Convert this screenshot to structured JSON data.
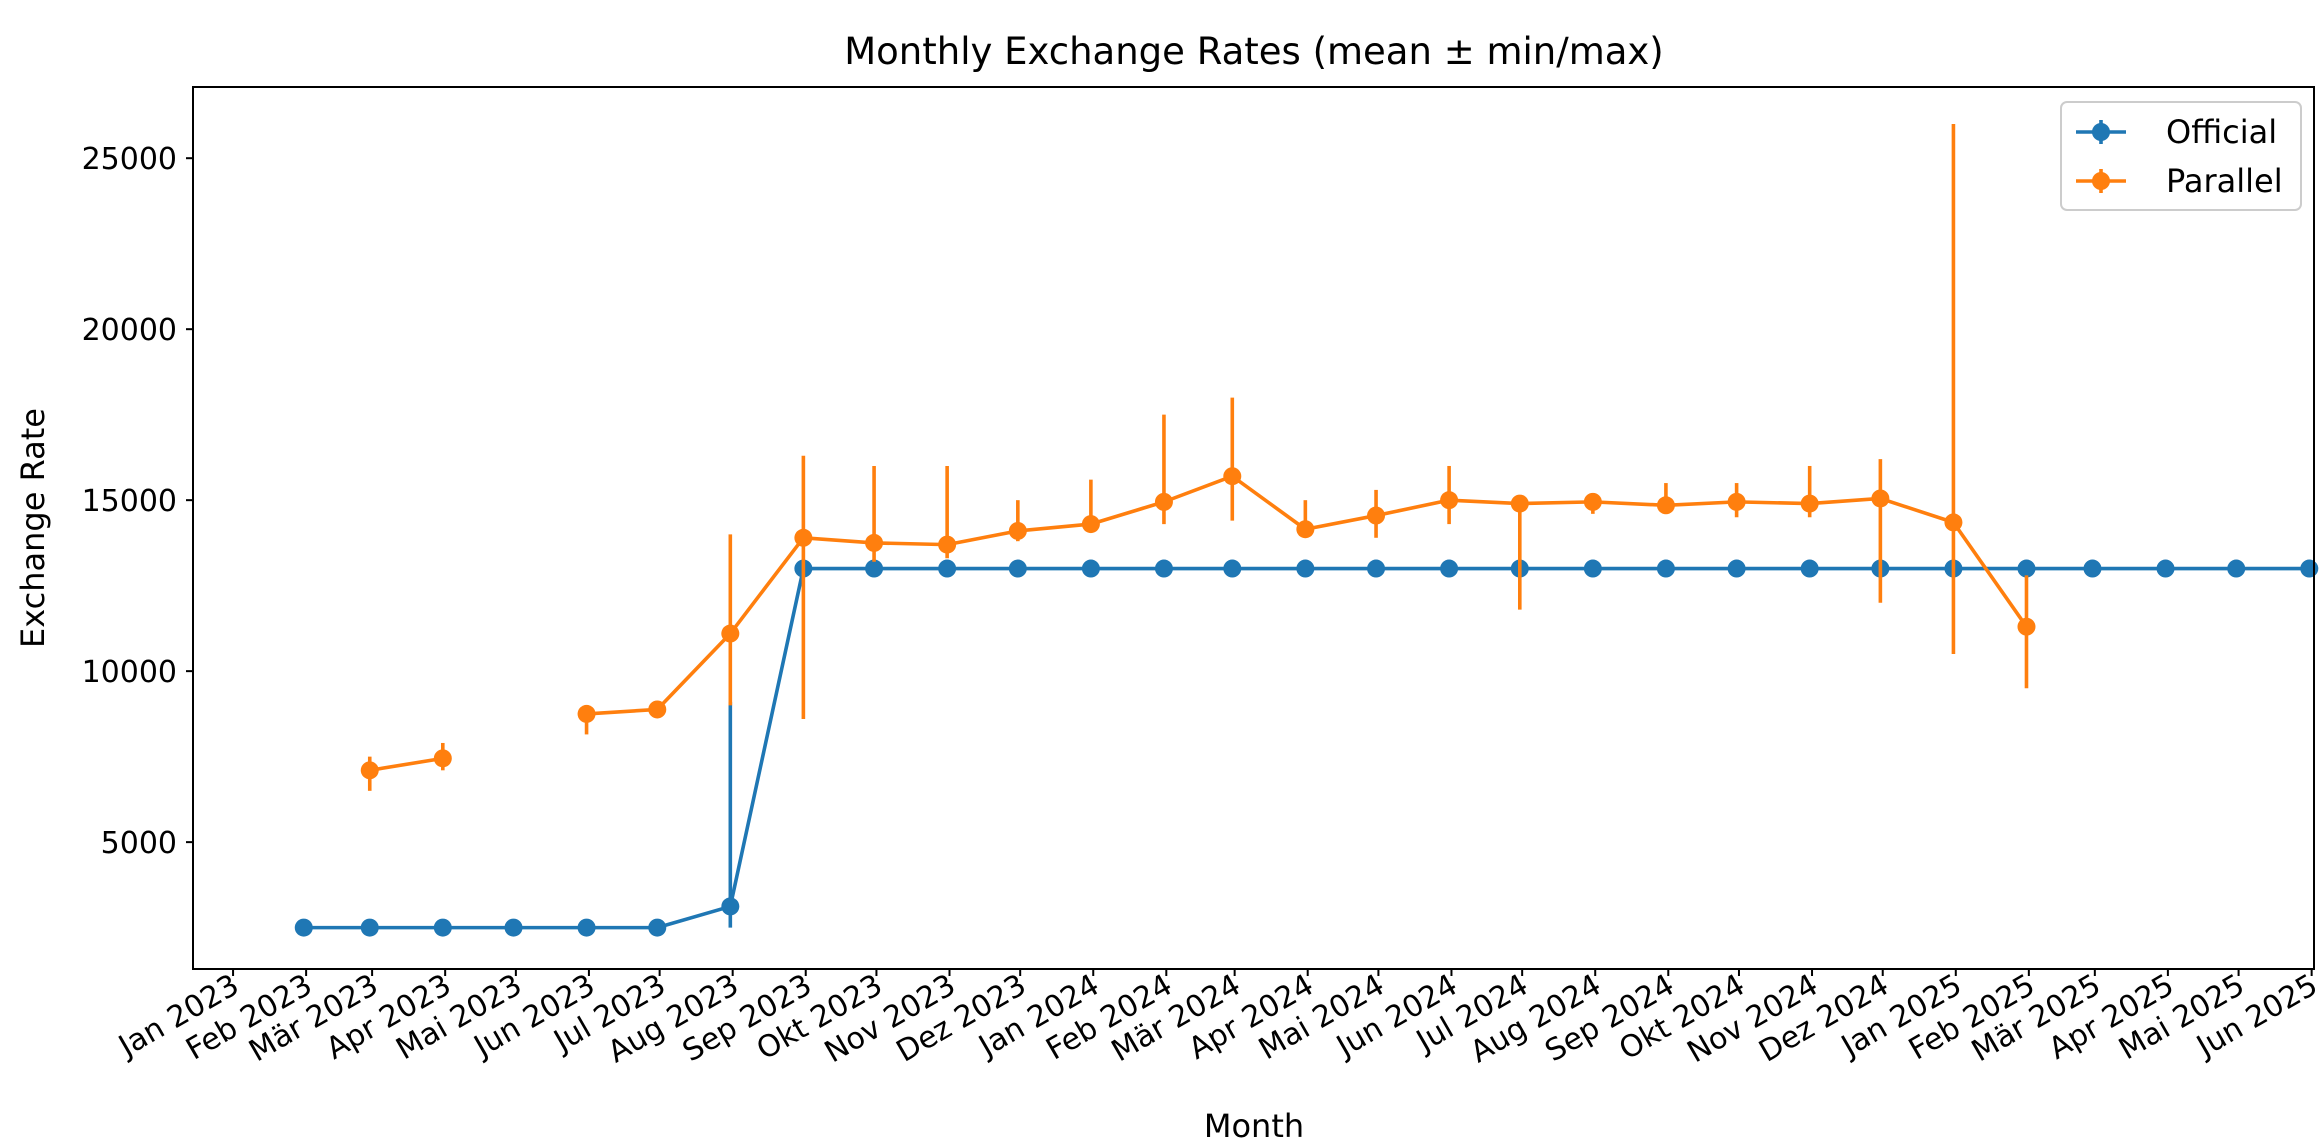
{
  "chart_data": {
    "type": "line",
    "title": "Monthly Exchange Rates (mean ± min/max)",
    "xlabel": "Month",
    "ylabel": "Exchange Rate",
    "x_range": [
      "2022-12-15",
      "2025-06-02"
    ],
    "ylim": [
      1290,
      27082
    ],
    "grid": false,
    "legend_position": "top-right",
    "x_ticks": [
      {
        "date": "2023-01-01",
        "label": "Jan 2023"
      },
      {
        "date": "2023-02-01",
        "label": "Feb 2023"
      },
      {
        "date": "2023-03-01",
        "label": "Mär 2023"
      },
      {
        "date": "2023-04-01",
        "label": "Apr 2023"
      },
      {
        "date": "2023-05-01",
        "label": "Mai 2023"
      },
      {
        "date": "2023-06-01",
        "label": "Jun 2023"
      },
      {
        "date": "2023-07-01",
        "label": "Jul 2023"
      },
      {
        "date": "2023-08-01",
        "label": "Aug 2023"
      },
      {
        "date": "2023-09-01",
        "label": "Sep 2023"
      },
      {
        "date": "2023-10-01",
        "label": "Okt 2023"
      },
      {
        "date": "2023-11-01",
        "label": "Nov 2023"
      },
      {
        "date": "2023-12-01",
        "label": "Dez 2023"
      },
      {
        "date": "2024-01-01",
        "label": "Jan 2024"
      },
      {
        "date": "2024-02-01",
        "label": "Feb 2024"
      },
      {
        "date": "2024-03-01",
        "label": "Mär 2024"
      },
      {
        "date": "2024-04-01",
        "label": "Apr 2024"
      },
      {
        "date": "2024-05-01",
        "label": "Mai 2024"
      },
      {
        "date": "2024-06-01",
        "label": "Jun 2024"
      },
      {
        "date": "2024-07-01",
        "label": "Jul 2024"
      },
      {
        "date": "2024-08-01",
        "label": "Aug 2024"
      },
      {
        "date": "2024-09-01",
        "label": "Sep 2024"
      },
      {
        "date": "2024-10-01",
        "label": "Okt 2024"
      },
      {
        "date": "2024-11-01",
        "label": "Nov 2024"
      },
      {
        "date": "2024-12-01",
        "label": "Dez 2024"
      },
      {
        "date": "2025-01-01",
        "label": "Jan 2025"
      },
      {
        "date": "2025-02-01",
        "label": "Feb 2025"
      },
      {
        "date": "2025-03-01",
        "label": "Mär 2025"
      },
      {
        "date": "2025-04-01",
        "label": "Apr 2025"
      },
      {
        "date": "2025-05-01",
        "label": "Mai 2025"
      },
      {
        "date": "2025-06-01",
        "label": "Jun 2025"
      }
    ],
    "y_ticks": [
      5000,
      10000,
      15000,
      20000,
      25000
    ],
    "series": [
      {
        "name": "Official",
        "color": "#1f77b4",
        "points": [
          {
            "x": "2023-01-31",
            "y": 2500,
            "min": 2500,
            "max": 2500
          },
          {
            "x": "2023-02-28",
            "y": 2500,
            "min": 2500,
            "max": 2500
          },
          {
            "x": "2023-03-31",
            "y": 2500,
            "min": 2500,
            "max": 2500
          },
          {
            "x": "2023-04-30",
            "y": 2500,
            "min": 2500,
            "max": 2500
          },
          {
            "x": "2023-05-31",
            "y": 2500,
            "min": 2500,
            "max": 2500
          },
          {
            "x": "2023-06-30",
            "y": 2500,
            "min": 2500,
            "max": 2500
          },
          {
            "x": "2023-07-31",
            "y": 3120,
            "min": 2500,
            "max": 9100
          },
          {
            "x": "2023-08-31",
            "y": 13000,
            "min": 13000,
            "max": 13000
          },
          {
            "x": "2023-09-30",
            "y": 13000,
            "min": 13000,
            "max": 13000
          },
          {
            "x": "2023-10-31",
            "y": 13000,
            "min": 13000,
            "max": 13000
          },
          {
            "x": "2023-11-30",
            "y": 13000,
            "min": 13000,
            "max": 13000
          },
          {
            "x": "2023-12-31",
            "y": 13000,
            "min": 13000,
            "max": 13000
          },
          {
            "x": "2024-01-31",
            "y": 13000,
            "min": 13000,
            "max": 13000
          },
          {
            "x": "2024-02-29",
            "y": 13000,
            "min": 13000,
            "max": 13000
          },
          {
            "x": "2024-03-31",
            "y": 13000,
            "min": 13000,
            "max": 13000
          },
          {
            "x": "2024-04-30",
            "y": 13000,
            "min": 13000,
            "max": 13000
          },
          {
            "x": "2024-05-31",
            "y": 13000,
            "min": 13000,
            "max": 13000
          },
          {
            "x": "2024-06-30",
            "y": 13000,
            "min": 13000,
            "max": 13000
          },
          {
            "x": "2024-07-31",
            "y": 13000,
            "min": 13000,
            "max": 13000
          },
          {
            "x": "2024-08-31",
            "y": 13000,
            "min": 13000,
            "max": 13000
          },
          {
            "x": "2024-09-30",
            "y": 13000,
            "min": 13000,
            "max": 13000
          },
          {
            "x": "2024-10-31",
            "y": 13000,
            "min": 13000,
            "max": 13000
          },
          {
            "x": "2024-11-30",
            "y": 13000,
            "min": 13000,
            "max": 13000
          },
          {
            "x": "2024-12-31",
            "y": 13000,
            "min": 13000,
            "max": 13000
          },
          {
            "x": "2025-01-31",
            "y": 13000,
            "min": 13000,
            "max": 13000
          },
          {
            "x": "2025-02-28",
            "y": 13000,
            "min": 13000,
            "max": 13000
          },
          {
            "x": "2025-03-31",
            "y": 13000,
            "min": 13000,
            "max": 13000
          },
          {
            "x": "2025-04-30",
            "y": 13000,
            "min": 13000,
            "max": 13000
          },
          {
            "x": "2025-05-31",
            "y": 13000,
            "min": 13000,
            "max": 13000
          }
        ]
      },
      {
        "name": "Parallel",
        "color": "#ff7f0e",
        "points": [
          {
            "x": "2023-01-31",
            "y": null,
            "min": null,
            "max": null
          },
          {
            "x": "2023-02-28",
            "y": 7100,
            "min": 6500,
            "max": 7500
          },
          {
            "x": "2023-03-31",
            "y": 7450,
            "min": 7100,
            "max": 7900
          },
          {
            "x": "2023-04-30",
            "y": null,
            "min": null,
            "max": null
          },
          {
            "x": "2023-05-31",
            "y": 8750,
            "min": 8150,
            "max": 9000
          },
          {
            "x": "2023-06-30",
            "y": 8880,
            "min": 8800,
            "max": 9000
          },
          {
            "x": "2023-07-31",
            "y": 11100,
            "min": 9000,
            "max": 14000
          },
          {
            "x": "2023-08-31",
            "y": 13900,
            "min": 8600,
            "max": 16300
          },
          {
            "x": "2023-09-30",
            "y": 13750,
            "min": 13200,
            "max": 16000
          },
          {
            "x": "2023-10-31",
            "y": 13700,
            "min": 13300,
            "max": 16000
          },
          {
            "x": "2023-11-30",
            "y": 14100,
            "min": 13800,
            "max": 15000
          },
          {
            "x": "2023-12-31",
            "y": 14300,
            "min": 14100,
            "max": 15600
          },
          {
            "x": "2024-01-31",
            "y": 14950,
            "min": 14300,
            "max": 17500
          },
          {
            "x": "2024-02-29",
            "y": 15700,
            "min": 14400,
            "max": 18000
          },
          {
            "x": "2024-03-31",
            "y": 14150,
            "min": 14000,
            "max": 15000
          },
          {
            "x": "2024-04-30",
            "y": 14550,
            "min": 13900,
            "max": 15300
          },
          {
            "x": "2024-05-31",
            "y": 15000,
            "min": 14300,
            "max": 16000
          },
          {
            "x": "2024-06-30",
            "y": 14900,
            "min": 11800,
            "max": 15100
          },
          {
            "x": "2024-07-31",
            "y": 14950,
            "min": 14600,
            "max": 15200
          },
          {
            "x": "2024-08-31",
            "y": 14850,
            "min": 14600,
            "max": 15500
          },
          {
            "x": "2024-09-30",
            "y": 14950,
            "min": 14500,
            "max": 15500
          },
          {
            "x": "2024-10-31",
            "y": 14900,
            "min": 14500,
            "max": 16000
          },
          {
            "x": "2024-11-30",
            "y": 15050,
            "min": 12000,
            "max": 16200
          },
          {
            "x": "2024-12-31",
            "y": 14350,
            "min": 10500,
            "max": 26000
          },
          {
            "x": "2025-01-31",
            "y": 11300,
            "min": 9500,
            "max": 12800
          }
        ]
      }
    ]
  }
}
